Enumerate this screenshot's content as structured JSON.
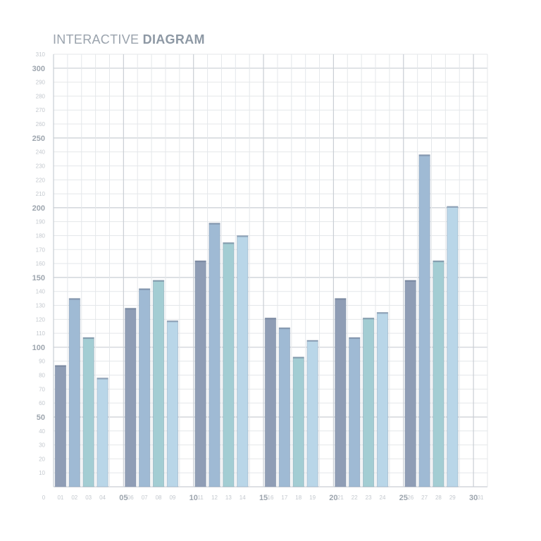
{
  "title_light": "INTERACTIVE",
  "title_bold": "DIAGRAM",
  "chart_data": {
    "type": "bar",
    "title": "INTERACTIVE DIAGRAM",
    "xlabel": "",
    "ylabel": "",
    "ylim": [
      0,
      310
    ],
    "xlim": [
      0,
      31
    ],
    "grid": true,
    "y_ticks": [
      10,
      20,
      30,
      40,
      50,
      60,
      70,
      80,
      90,
      100,
      110,
      120,
      130,
      140,
      150,
      160,
      170,
      180,
      190,
      200,
      210,
      220,
      230,
      240,
      250,
      260,
      270,
      280,
      290,
      300,
      310
    ],
    "y_major_ticks": [
      50,
      100,
      150,
      200,
      250,
      300
    ],
    "x_tick_labels": [
      "0",
      "01",
      "02",
      "03",
      "04",
      "05",
      "06",
      "07",
      "08",
      "09",
      "10",
      "11",
      "12",
      "13",
      "14",
      "15",
      "16",
      "17",
      "18",
      "19",
      "20",
      "21",
      "22",
      "23",
      "24",
      "25",
      "26",
      "27",
      "28",
      "29",
      "30",
      "31"
    ],
    "x_major_ticks": [
      "05",
      "10",
      "15",
      "20",
      "25",
      "30"
    ],
    "bars": [
      {
        "x": 1,
        "value": 87,
        "color": "#8f9db5"
      },
      {
        "x": 2,
        "value": 135,
        "color": "#9fbad4"
      },
      {
        "x": 3,
        "value": 107,
        "color": "#a3cdd3"
      },
      {
        "x": 4,
        "value": 78,
        "color": "#b9d6e8"
      },
      {
        "x": 6,
        "value": 128,
        "color": "#8f9db5"
      },
      {
        "x": 7,
        "value": 142,
        "color": "#9fbad4"
      },
      {
        "x": 8,
        "value": 148,
        "color": "#a3cdd3"
      },
      {
        "x": 9,
        "value": 119,
        "color": "#b9d6e8"
      },
      {
        "x": 11,
        "value": 162,
        "color": "#8f9db5"
      },
      {
        "x": 12,
        "value": 189,
        "color": "#9fbad4"
      },
      {
        "x": 13,
        "value": 175,
        "color": "#a3cdd3"
      },
      {
        "x": 14,
        "value": 180,
        "color": "#b9d6e8"
      },
      {
        "x": 16,
        "value": 121,
        "color": "#8f9db5"
      },
      {
        "x": 17,
        "value": 114,
        "color": "#9fbad4"
      },
      {
        "x": 18,
        "value": 93,
        "color": "#a3cdd3"
      },
      {
        "x": 19,
        "value": 105,
        "color": "#b9d6e8"
      },
      {
        "x": 21,
        "value": 135,
        "color": "#8f9db5"
      },
      {
        "x": 22,
        "value": 107,
        "color": "#9fbad4"
      },
      {
        "x": 23,
        "value": 121,
        "color": "#a3cdd3"
      },
      {
        "x": 24,
        "value": 125,
        "color": "#b9d6e8"
      },
      {
        "x": 26,
        "value": 148,
        "color": "#8f9db5"
      },
      {
        "x": 27,
        "value": 238,
        "color": "#9fbad4"
      },
      {
        "x": 28,
        "value": 162,
        "color": "#a3cdd3"
      },
      {
        "x": 29,
        "value": 201,
        "color": "#b9d6e8"
      }
    ]
  }
}
